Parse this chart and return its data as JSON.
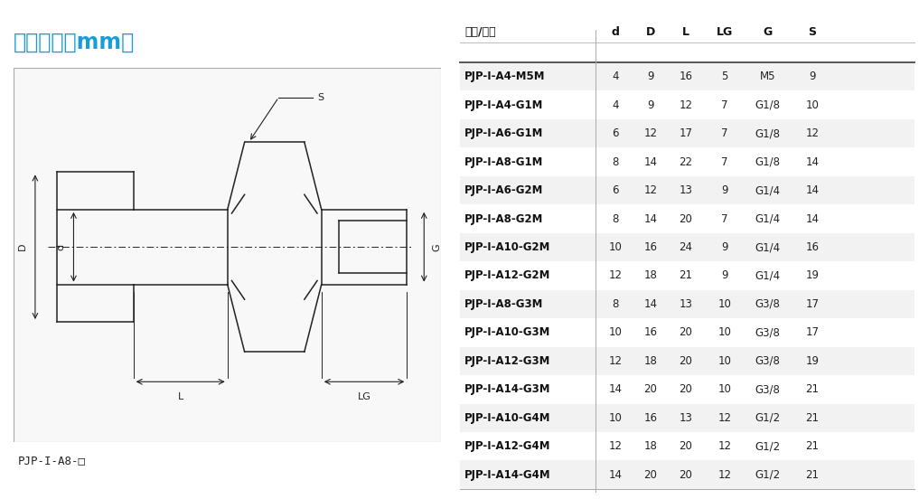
{
  "title": "尺寸规格（mm）",
  "title_color": "#1a9cd8",
  "background_color": "#ffffff",
  "table_header": [
    "型号/尺寸",
    "d",
    "D",
    "L",
    "LG",
    "G",
    "S"
  ],
  "table_data": [
    [
      "PJP-I-A4-M5M",
      "4",
      "9",
      "16",
      "5",
      "M5",
      "9"
    ],
    [
      "PJP-I-A4-G1M",
      "4",
      "9",
      "12",
      "7",
      "G1/8",
      "10"
    ],
    [
      "PJP-I-A6-G1M",
      "6",
      "12",
      "17",
      "7",
      "G1/8",
      "12"
    ],
    [
      "PJP-I-A8-G1M",
      "8",
      "14",
      "22",
      "7",
      "G1/8",
      "14"
    ],
    [
      "PJP-I-A6-G2M",
      "6",
      "12",
      "13",
      "9",
      "G1/4",
      "14"
    ],
    [
      "PJP-I-A8-G2M",
      "8",
      "14",
      "20",
      "7",
      "G1/4",
      "14"
    ],
    [
      "PJP-I-A10-G2M",
      "10",
      "16",
      "24",
      "9",
      "G1/4",
      "16"
    ],
    [
      "PJP-I-A12-G2M",
      "12",
      "18",
      "21",
      "9",
      "G1/4",
      "19"
    ],
    [
      "PJP-I-A8-G3M",
      "8",
      "14",
      "13",
      "10",
      "G3/8",
      "17"
    ],
    [
      "PJP-I-A10-G3M",
      "10",
      "16",
      "20",
      "10",
      "G3/8",
      "17"
    ],
    [
      "PJP-I-A12-G3M",
      "12",
      "18",
      "20",
      "10",
      "G3/8",
      "19"
    ],
    [
      "PJP-I-A14-G3M",
      "14",
      "20",
      "20",
      "10",
      "G3/8",
      "21"
    ],
    [
      "PJP-I-A10-G4M",
      "10",
      "16",
      "13",
      "12",
      "G1/2",
      "21"
    ],
    [
      "PJP-I-A12-G4M",
      "12",
      "18",
      "20",
      "12",
      "G1/2",
      "21"
    ],
    [
      "PJP-I-A14-G4M",
      "14",
      "20",
      "20",
      "12",
      "G1/2",
      "21"
    ]
  ],
  "shaded_rows": [
    0,
    2,
    4,
    6,
    8,
    10,
    12,
    14
  ],
  "shade_color": "#f2f2f2",
  "diagram_label": "PJP-I-A8-□",
  "line_color": "#222222",
  "top_bar_color": "#1a9cd8"
}
